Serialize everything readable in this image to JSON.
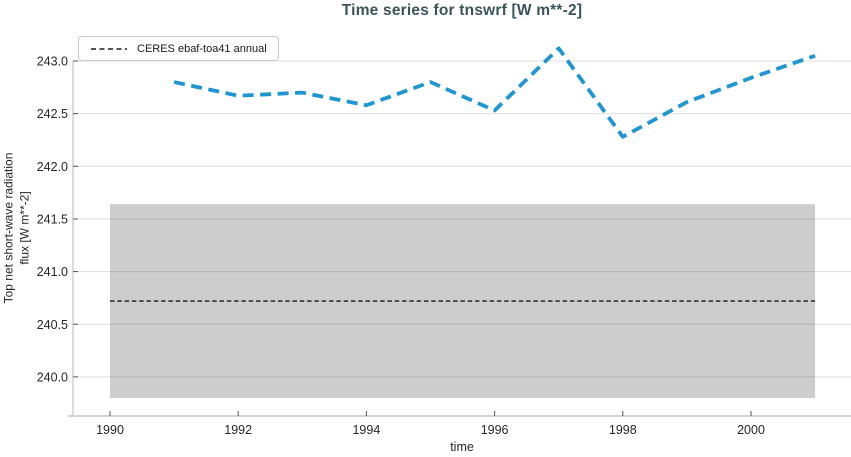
{
  "chart": {
    "title": "Time series for tnswrf [W m**-2]",
    "xlabel": "time",
    "ylabel_line1": "Top net short-wave radiation",
    "ylabel_line2": "flux [W m**-2]",
    "legend": {
      "label": "CERES ebaf-toa41 annual"
    }
  },
  "chart_data": {
    "type": "line",
    "title": "Time series for tnswrf [W m**-2]",
    "xlabel": "time",
    "ylabel": "Top net short-wave radiation flux [W m**-2]",
    "grid": true,
    "legend_position": "upper left",
    "x_ticks": [
      1990,
      1992,
      1994,
      1996,
      1998,
      2000
    ],
    "y_ticks": [
      240.0,
      240.5,
      241.0,
      241.5,
      242.0,
      242.5,
      243.0
    ],
    "xlim": [
      1989.4,
      2001.6
    ],
    "ylim": [
      239.6,
      243.35
    ],
    "series": [
      {
        "name": "tnswrf",
        "style": "dashed",
        "color": "#1f96d4",
        "x": [
          1991,
          1992,
          1993,
          1994,
          1995,
          1996,
          1997,
          1998,
          1999,
          2000,
          2001
        ],
        "values": [
          242.8,
          242.67,
          242.7,
          242.58,
          242.8,
          242.53,
          243.12,
          242.28,
          242.61,
          242.84,
          243.05
        ]
      }
    ],
    "reference": {
      "name": "CERES ebaf-toa41 annual",
      "mean": 240.72,
      "band_min": 239.8,
      "band_max": 241.64,
      "x_start": 1990,
      "x_end": 2001,
      "line_color": "#1a1a1a",
      "band_color": "#cdcdcd"
    }
  }
}
